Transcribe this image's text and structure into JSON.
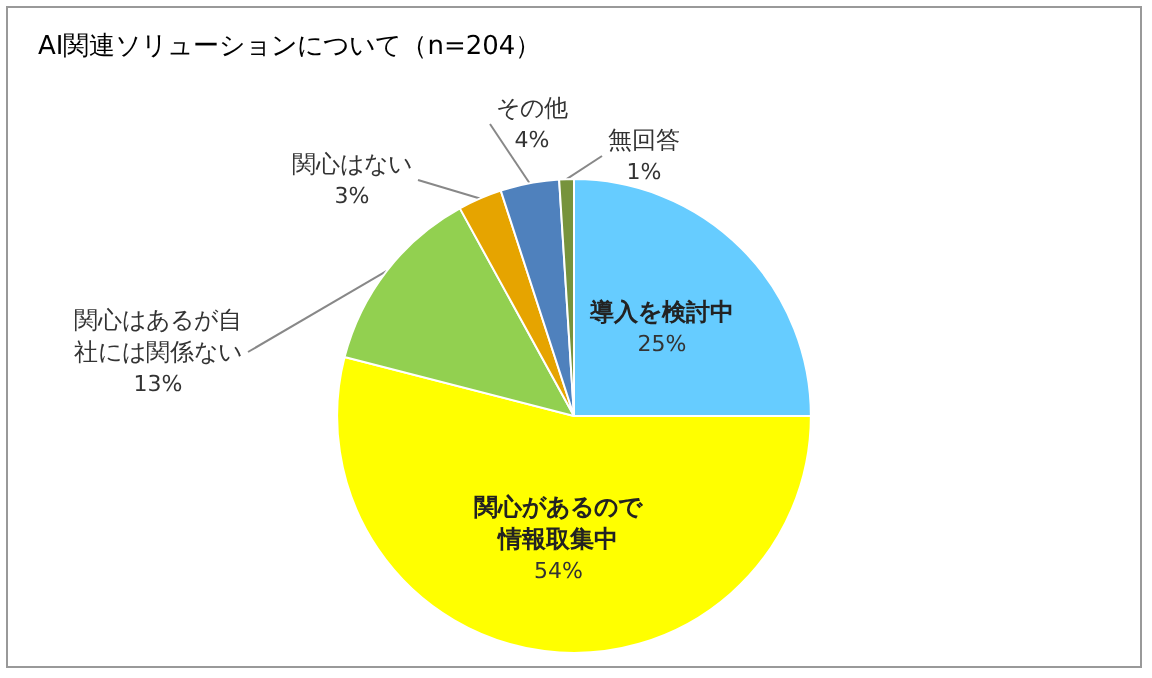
{
  "chart_data": {
    "type": "pie",
    "title": "AI関連ソリューションについて（n=204）",
    "categories": [
      "導入を検討中",
      "関心があるので情報取集中",
      "関心はあるが自社には関係ない",
      "関心はない",
      "その他",
      "無回答"
    ],
    "values": [
      25,
      54,
      13,
      3,
      4,
      1
    ],
    "value_labels": [
      "25%",
      "54%",
      "13%",
      "3%",
      "4%",
      "1%"
    ],
    "colors": [
      "#66ccff",
      "#ffff00",
      "#92d050",
      "#e6a400",
      "#4f81bd",
      "#77933c"
    ]
  }
}
